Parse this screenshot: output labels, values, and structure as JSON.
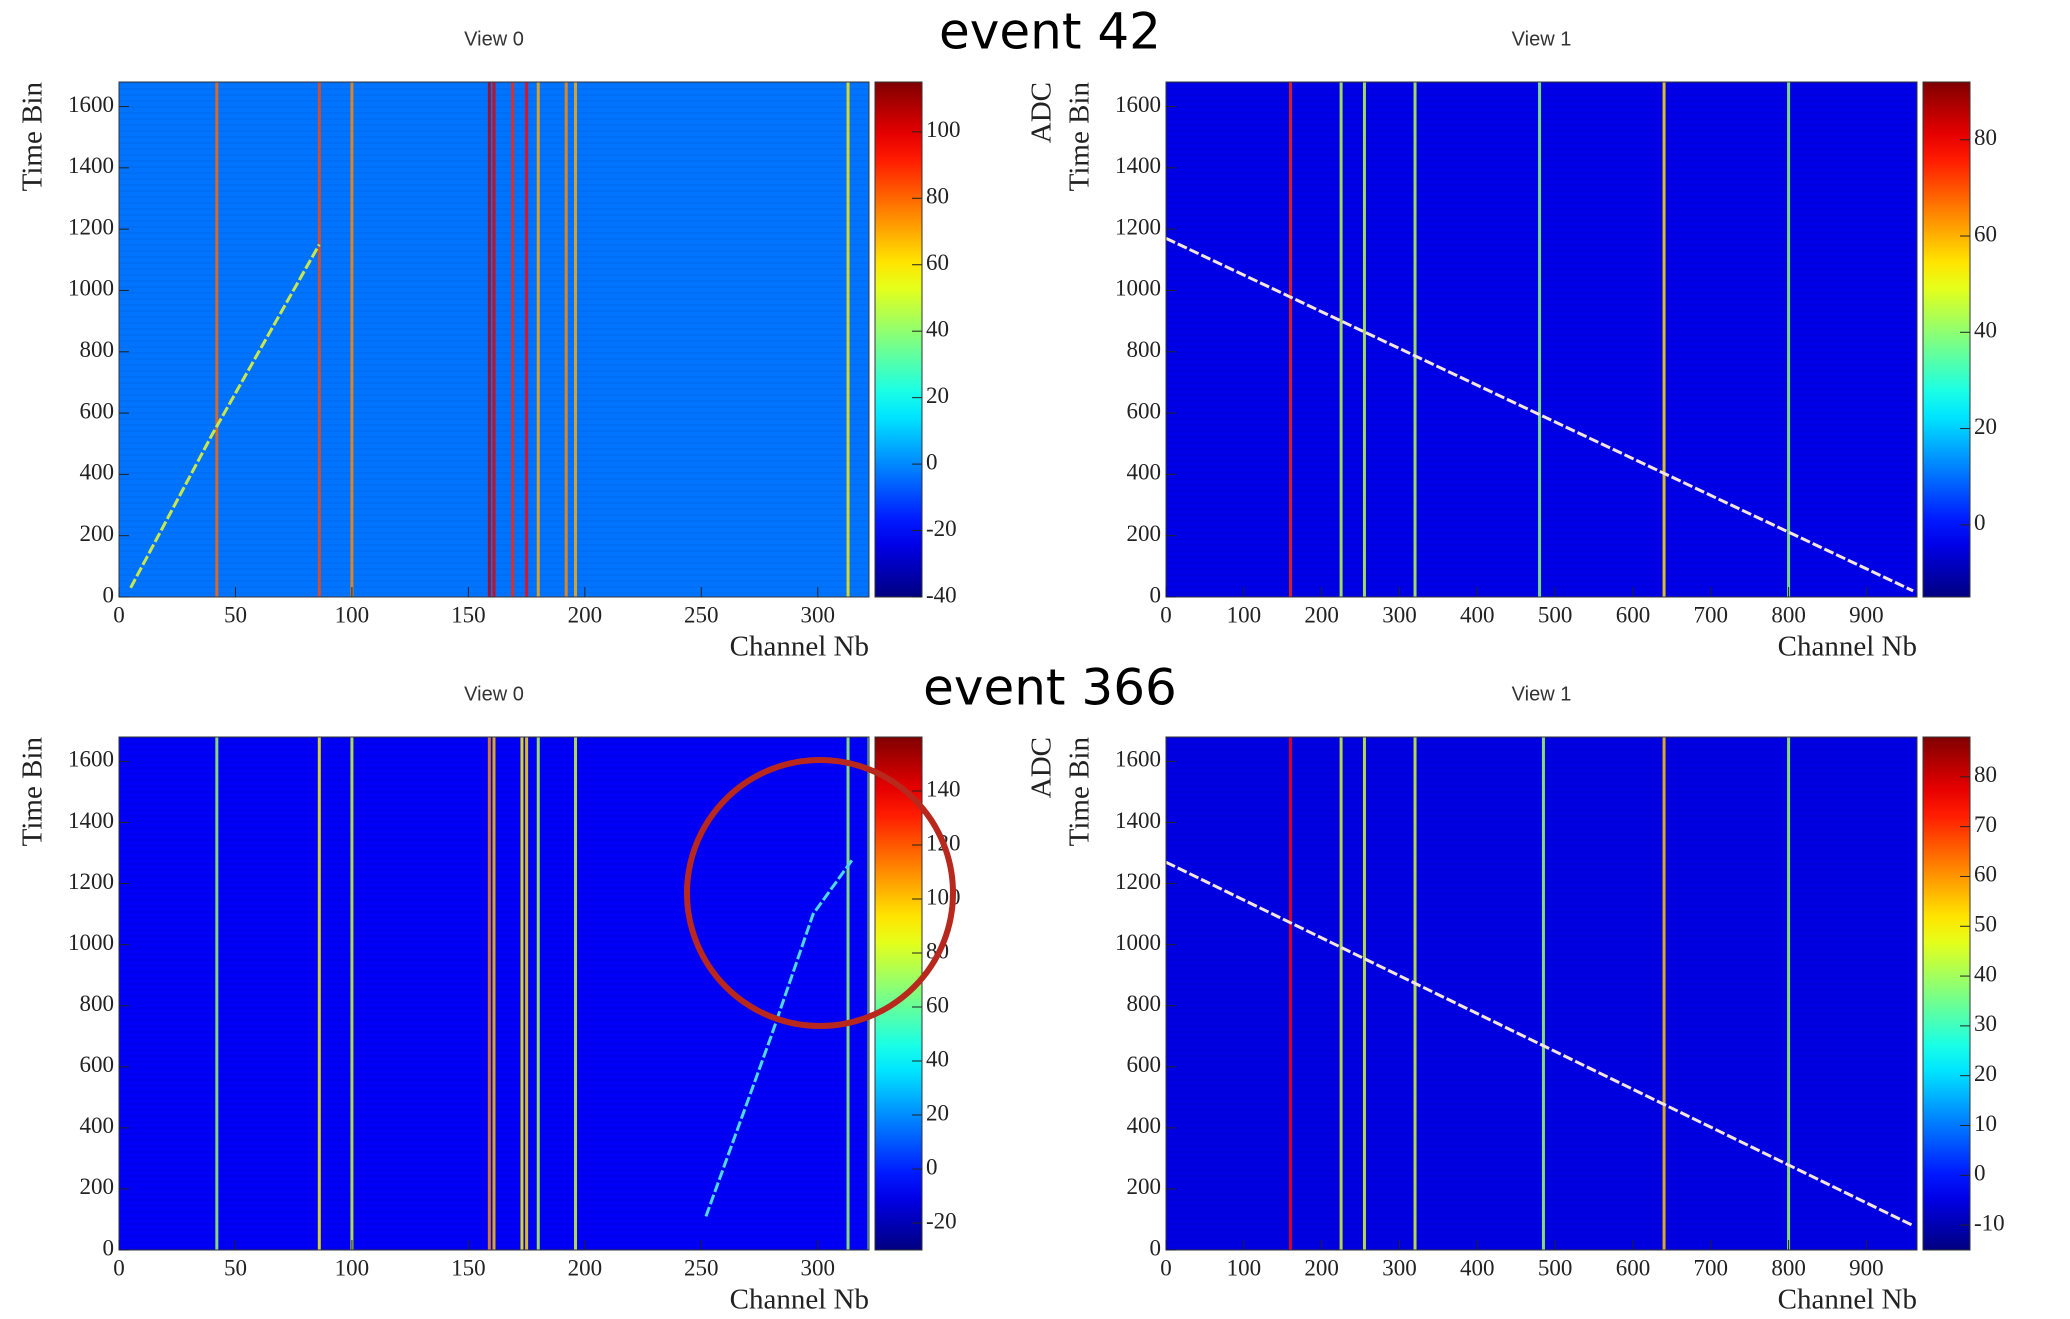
{
  "events": [
    "event 42",
    "event 366"
  ],
  "chart_data": [
    {
      "type": "heatmap",
      "title": "View 0",
      "xlabel": "Channel Nb",
      "ylabel": "Time Bin",
      "colorbar_label": "ADC",
      "xlim": [
        0,
        322
      ],
      "xticks": [
        0,
        50,
        100,
        150,
        200,
        250,
        300
      ],
      "ylim": [
        0,
        1680
      ],
      "yticks": [
        0,
        200,
        400,
        600,
        800,
        1000,
        1200,
        1400,
        1600
      ],
      "clim": [
        -40,
        115
      ],
      "cticks": [
        -40,
        -20,
        0,
        20,
        40,
        60,
        80,
        100
      ],
      "background": -3,
      "stripes": {
        "x": [
          42,
          86,
          100,
          159,
          161,
          169,
          175,
          180,
          192,
          196,
          313
        ],
        "values": [
          80,
          85,
          75,
          105,
          100,
          90,
          95,
          70,
          75,
          70,
          60
        ]
      },
      "tracks": [
        {
          "color": "#c8e84a",
          "x": [
            5,
            40,
            86
          ],
          "y": [
            30,
            530,
            1150
          ]
        }
      ]
    },
    {
      "type": "heatmap",
      "title": "View 1",
      "xlabel": "Channel Nb",
      "ylabel": "Time Bin",
      "colorbar_label": "ADC",
      "xlim": [
        0,
        965
      ],
      "xticks": [
        0,
        100,
        200,
        300,
        400,
        500,
        600,
        700,
        800,
        900
      ],
      "ylim": [
        0,
        1680
      ],
      "yticks": [
        0,
        200,
        400,
        600,
        800,
        1000,
        1200,
        1400,
        1600
      ],
      "clim": [
        -15,
        92
      ],
      "cticks": [
        0,
        20,
        40,
        60,
        80
      ],
      "background": -4,
      "stripes": {
        "x": [
          160,
          225,
          255,
          320,
          480,
          640,
          800
        ],
        "values": [
          75,
          45,
          45,
          45,
          40,
          55,
          40
        ]
      },
      "tracks": [
        {
          "color": "#f4e6dc",
          "x": [
            0,
            960
          ],
          "y": [
            1170,
            20
          ]
        }
      ]
    },
    {
      "type": "heatmap",
      "title": "View 0",
      "xlabel": "Channel Nb",
      "ylabel": "Time Bin",
      "colorbar_label": "ADC",
      "xlim": [
        0,
        322
      ],
      "xticks": [
        0,
        50,
        100,
        150,
        200,
        250,
        300
      ],
      "ylim": [
        0,
        1680
      ],
      "yticks": [
        0,
        200,
        400,
        600,
        800,
        1000,
        1200,
        1400,
        1600
      ],
      "clim": [
        -30,
        160
      ],
      "cticks": [
        -20,
        0,
        20,
        40,
        60,
        80,
        100,
        120,
        140
      ],
      "background": -8,
      "stripes": {
        "x": [
          42,
          86,
          100,
          159,
          161,
          173,
          175,
          180,
          196,
          313,
          322
        ],
        "values": [
          70,
          90,
          80,
          110,
          100,
          90,
          95,
          75,
          80,
          70,
          65
        ]
      },
      "tracks": [
        {
          "color": "#4fd8e8",
          "x": [
            252,
            280,
            298,
            315
          ],
          "y": [
            110,
            700,
            1100,
            1280
          ]
        }
      ]
    },
    {
      "type": "heatmap",
      "title": "View 1",
      "xlabel": "Channel Nb",
      "ylabel": "Time Bin",
      "colorbar_label": "ADC",
      "xlim": [
        0,
        965
      ],
      "xticks": [
        0,
        100,
        200,
        300,
        400,
        500,
        600,
        700,
        800,
        900
      ],
      "ylim": [
        0,
        1680
      ],
      "yticks": [
        0,
        200,
        400,
        600,
        800,
        1000,
        1200,
        1400,
        1600
      ],
      "clim": [
        -15,
        88
      ],
      "cticks": [
        -10,
        0,
        10,
        20,
        30,
        40,
        50,
        60,
        70,
        80
      ],
      "background": -5,
      "stripes": {
        "x": [
          160,
          225,
          255,
          320,
          485,
          640,
          800
        ],
        "values": [
          75,
          45,
          45,
          45,
          40,
          55,
          40
        ]
      },
      "tracks": [
        {
          "color": "#f4e6dc",
          "x": [
            0,
            960
          ],
          "y": [
            1270,
            80
          ]
        }
      ]
    }
  ]
}
